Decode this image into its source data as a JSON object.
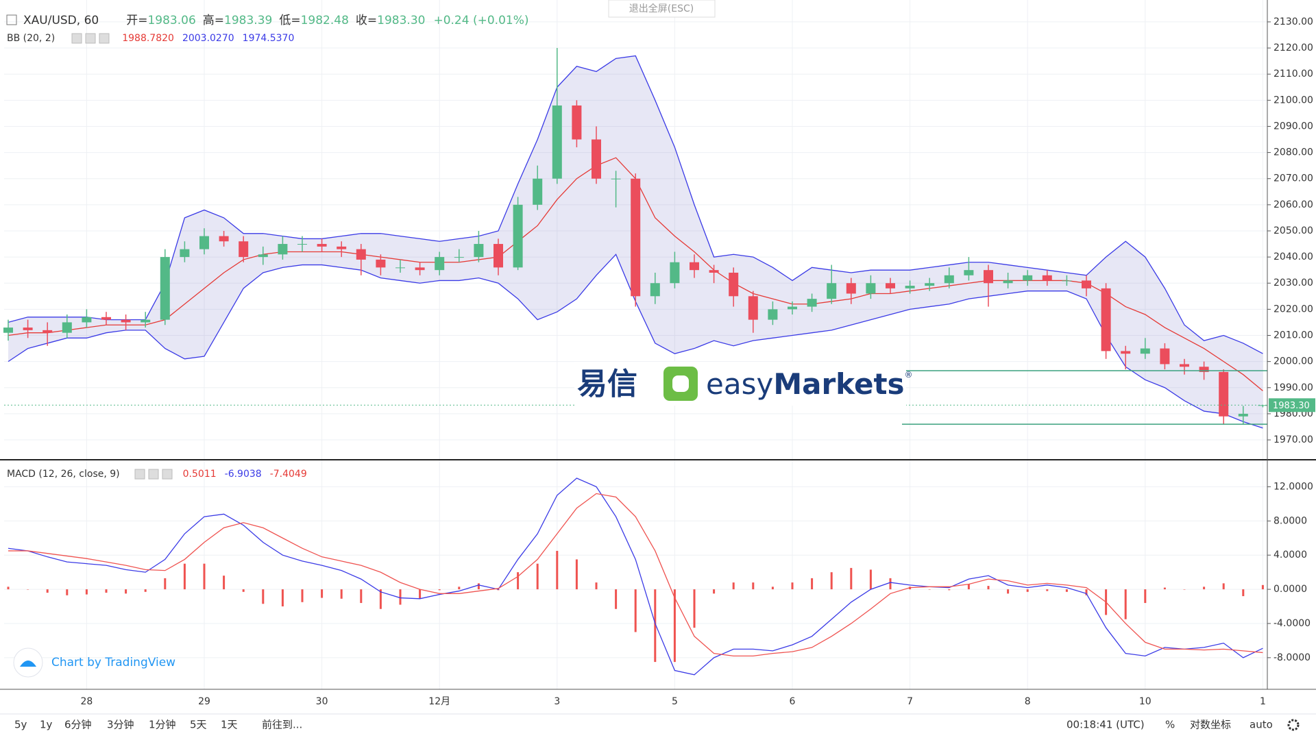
{
  "header": {
    "exit_fullscreen": "退出全屏(ESC)"
  },
  "chart_data": [
    {
      "type": "candlestick",
      "title": "XAU/USD, 60",
      "legend": [
        {
          "label": "开=",
          "value": "1983.06"
        },
        {
          "label": "高=",
          "value": "1983.39"
        },
        {
          "label": "低=",
          "value": "1982.48"
        },
        {
          "label": "收=",
          "value": "1983.30"
        }
      ],
      "change": "+0.24 (+0.01%)",
      "categories": [
        null,
        null,
        null,
        null,
        "28",
        null,
        null,
        null,
        null,
        null,
        "29",
        null,
        null,
        null,
        null,
        null,
        "30",
        null,
        null,
        null,
        null,
        null,
        "12月",
        null,
        null,
        null,
        null,
        null,
        "3",
        null,
        null,
        null,
        null,
        null,
        "5",
        null,
        null,
        null,
        null,
        null,
        "6",
        null,
        null,
        null,
        null,
        null,
        "7",
        null,
        null,
        null,
        null,
        null,
        "8",
        null,
        null,
        null,
        null,
        null,
        "10",
        null,
        null,
        null,
        null,
        null,
        "1"
      ],
      "open": [
        2011,
        2013,
        2012,
        2011,
        2015,
        2017,
        2016,
        2015,
        2016,
        2040,
        2043,
        2048,
        2046,
        2040,
        2041,
        2045,
        2045,
        2044,
        2043,
        2039,
        2036,
        2036,
        2035,
        2040,
        2040,
        2045,
        2036,
        2060,
        2070,
        2098,
        2085,
        2070,
        2070,
        2025,
        2030,
        2038,
        2035,
        2034,
        2025,
        2016,
        2020,
        2021,
        2024,
        2030,
        2026,
        2030,
        2028,
        2029,
        2030,
        2033,
        2035,
        2030,
        2031,
        2033,
        2031,
        2031,
        2028,
        2004,
        2003,
        2005,
        1999,
        1998,
        1996,
        1979,
        1983.06
      ],
      "high": [
        2016,
        2016,
        2015,
        2018,
        2020,
        2019,
        2018,
        2019,
        2043,
        2046,
        2051,
        2050,
        2048,
        2044,
        2048,
        2048,
        2047,
        2046,
        2045,
        2041,
        2039,
        2038,
        2042,
        2043,
        2050,
        2047,
        2063,
        2075,
        2120,
        2100,
        2090,
        2073,
        2072,
        2034,
        2042,
        2041,
        2037,
        2036,
        2027,
        2023,
        2023,
        2026,
        2037,
        2032,
        2033,
        2032,
        2031,
        2032,
        2036,
        2040,
        2037,
        2034,
        2035,
        2035,
        2033,
        2033,
        2030,
        2006,
        2009,
        2007,
        2001,
        2000,
        1997,
        1983,
        1983.39
      ],
      "low": [
        2008,
        2009,
        2006,
        2009,
        2013,
        2014,
        2012,
        2013,
        2014,
        2038,
        2041,
        2044,
        2038,
        2037,
        2039,
        2042,
        2042,
        2040,
        2033,
        2033,
        2034,
        2033,
        2033,
        2038,
        2038,
        2033,
        2035,
        2058,
        2068,
        2082,
        2068,
        2059,
        2021,
        2022,
        2028,
        2032,
        2030,
        2021,
        2011,
        2014,
        2018,
        2019,
        2022,
        2022,
        2024,
        2026,
        2026,
        2027,
        2028,
        2031,
        2021,
        2028,
        2029,
        2029,
        2029,
        2025,
        2001,
        1997,
        2001,
        1997,
        1995,
        1993,
        1976,
        1976,
        1982.48
      ],
      "close": [
        2013,
        2012,
        2011,
        2015,
        2017,
        2016,
        2015,
        2016,
        2040,
        2043,
        2048,
        2046,
        2040,
        2041,
        2045,
        2045,
        2044,
        2043,
        2039,
        2036,
        2036,
        2035,
        2040,
        2040,
        2045,
        2036,
        2060,
        2070,
        2098,
        2085,
        2070,
        2070,
        2025,
        2030,
        2038,
        2035,
        2034,
        2025,
        2016,
        2020,
        2021,
        2024,
        2030,
        2026,
        2030,
        2028,
        2029,
        2030,
        2033,
        2035,
        2030,
        2031,
        2033,
        2031,
        2031,
        2028,
        2004,
        2003,
        2005,
        1999,
        1998,
        1996,
        1979,
        1980,
        1983.3
      ],
      "up_color": "#53b987",
      "down_color": "#eb4d5c",
      "ylim": [
        1962.4,
        2136.8
      ],
      "yticks": [
        {
          "value": 1970,
          "label": "1970.00"
        },
        {
          "value": 1980,
          "label": "1980.00"
        },
        {
          "value": 1990,
          "label": "1990.00"
        },
        {
          "value": 2000,
          "label": "2000.00"
        },
        {
          "value": 2010,
          "label": "2010.00"
        },
        {
          "value": 2020,
          "label": "2020.00"
        },
        {
          "value": 2030,
          "label": "2030.00"
        },
        {
          "value": 2040,
          "label": "2040.00"
        },
        {
          "value": 2050,
          "label": "2050.00"
        },
        {
          "value": 2060,
          "label": "2060.00"
        },
        {
          "value": 2070,
          "label": "2070.00"
        },
        {
          "value": 2080,
          "label": "2080.00"
        },
        {
          "value": 2090,
          "label": "2090.00"
        },
        {
          "value": 2100,
          "label": "2100.00"
        },
        {
          "value": 2110,
          "label": "2110.00"
        },
        {
          "value": 2120,
          "label": "2120.00"
        },
        {
          "value": 2130,
          "label": "2130.00"
        }
      ],
      "grid": true,
      "bands": {
        "name": "BB (20, 2)",
        "fill": "rgba(120,120,200,0.18)",
        "basis": {
          "color": "#e53935",
          "values": [
            2010,
            2011,
            2011,
            2012,
            2013,
            2014,
            2014,
            2014,
            2016,
            2022,
            2028,
            2034,
            2039,
            2041,
            2042,
            2042,
            2042,
            2042,
            2041,
            2040,
            2039,
            2038,
            2038,
            2038,
            2039,
            2040,
            2046,
            2052,
            2062,
            2070,
            2075,
            2078,
            2070,
            2055,
            2048,
            2042,
            2035,
            2030,
            2026,
            2024,
            2022,
            2022,
            2023,
            2024,
            2026,
            2026,
            2027,
            2028,
            2029,
            2030,
            2031,
            2031,
            2031,
            2031,
            2031,
            2030,
            2026,
            2021,
            2018,
            2013,
            2009,
            2005,
            2000,
            1995,
            1988.782
          ]
        },
        "upper": {
          "color": "#3a3ae6",
          "values": [
            2015,
            2017,
            2017,
            2017,
            2017,
            2016,
            2016,
            2016,
            2030,
            2055,
            2058,
            2055,
            2049,
            2049,
            2048,
            2047,
            2047,
            2048,
            2049,
            2049,
            2048,
            2047,
            2046,
            2047,
            2048,
            2050,
            2068,
            2085,
            2105,
            2113,
            2111,
            2116,
            2117,
            2100,
            2082,
            2060,
            2040,
            2041,
            2040,
            2036,
            2031,
            2036,
            2035,
            2034,
            2035,
            2035,
            2035,
            2036,
            2037,
            2038,
            2038,
            2037,
            2036,
            2035,
            2034,
            2033,
            2040,
            2046,
            2040,
            2028,
            2014,
            2008,
            2010,
            2007,
            2003.027
          ]
        },
        "lower": {
          "color": "#3a3ae6",
          "values": [
            2000,
            2005,
            2007,
            2009,
            2009,
            2011,
            2012,
            2012,
            2005,
            2001,
            2002,
            2015,
            2028,
            2034,
            2036,
            2037,
            2037,
            2036,
            2035,
            2032,
            2031,
            2030,
            2031,
            2031,
            2032,
            2030,
            2024,
            2016,
            2019,
            2024,
            2033,
            2041,
            2023,
            2007,
            2003,
            2005,
            2008,
            2006,
            2008,
            2009,
            2010,
            2011,
            2012,
            2014,
            2016,
            2018,
            2020,
            2021,
            2022,
            2024,
            2025,
            2026,
            2027,
            2027,
            2027,
            2024,
            2010,
            1998,
            1993,
            1990,
            1985,
            1981,
            1980,
            1977,
            1974.537
          ]
        },
        "legend_values": [
          {
            "label": "1988.7820",
            "color": "#e53935"
          },
          {
            "label": "2003.0270",
            "color": "#3a3ae6"
          },
          {
            "label": "1974.5370",
            "color": "#3a3ae6"
          }
        ]
      },
      "last_price": {
        "value": 1983.3,
        "label": "1983.30",
        "color": "#53b987"
      },
      "hlines": [
        {
          "value": 1996.5,
          "color": "#3aa17e"
        },
        {
          "value": 1976,
          "color": "#3aa17e"
        }
      ]
    },
    {
      "type": "macd",
      "title": "MACD (12, 26, close, 9)",
      "legend_values": [
        {
          "label": "0.5011",
          "color": "#e53935"
        },
        {
          "label": "-6.9038",
          "color": "#3a3ae6"
        },
        {
          "label": "-7.4049",
          "color": "#e53935"
        }
      ],
      "ylim": [
        -11.7,
        15
      ],
      "yticks": [
        {
          "value": -8,
          "label": "-8.0000"
        },
        {
          "value": -4,
          "label": "-4.0000"
        },
        {
          "value": 0,
          "label": "0.0000"
        },
        {
          "value": 4,
          "label": "4.0000"
        },
        {
          "value": 8,
          "label": "8.0000"
        },
        {
          "value": 12,
          "label": "12.0000"
        }
      ],
      "grid": true,
      "series": [
        {
          "kind": "histogram",
          "color": "#ef5350",
          "values": [
            0.3,
            0.0,
            -0.4,
            -0.7,
            -0.6,
            -0.4,
            -0.5,
            -0.3,
            1.3,
            3.0,
            3.0,
            1.6,
            -0.3,
            -1.7,
            -2.0,
            -1.5,
            -1.0,
            -1.1,
            -1.6,
            -2.3,
            -1.8,
            -1.1,
            -0.1,
            0.3,
            0.7,
            -0.1,
            2.0,
            3.0,
            4.5,
            3.5,
            0.8,
            -2.3,
            -5.0,
            -8.5,
            -8.5,
            -4.5,
            -0.5,
            0.8,
            0.8,
            0.3,
            0.8,
            1.3,
            2.0,
            2.5,
            2.3,
            1.3,
            0.3,
            0.0,
            -0.1,
            0.6,
            0.4,
            -0.5,
            -0.3,
            -0.2,
            -0.3,
            -0.7,
            -3.0,
            -3.5,
            -1.6,
            0.2,
            0.0,
            0.3,
            0.7,
            -0.8,
            0.5011
          ]
        },
        {
          "kind": "line",
          "color": "#3a3ae6",
          "values": [
            4.8,
            4.5,
            3.8,
            3.2,
            3.0,
            2.8,
            2.3,
            2.0,
            3.5,
            6.5,
            8.5,
            8.8,
            7.5,
            5.5,
            4.0,
            3.3,
            2.8,
            2.2,
            1.2,
            -0.3,
            -1.0,
            -1.1,
            -0.6,
            -0.2,
            0.5,
            0.0,
            3.5,
            6.5,
            11.0,
            13.0,
            12.0,
            8.5,
            3.5,
            -4.0,
            -9.5,
            -10.0,
            -8.0,
            -7.0,
            -7.0,
            -7.2,
            -6.5,
            -5.5,
            -3.5,
            -1.5,
            0.0,
            0.8,
            0.5,
            0.3,
            0.2,
            1.2,
            1.6,
            0.5,
            0.2,
            0.5,
            0.2,
            -0.5,
            -4.5,
            -7.5,
            -7.8,
            -6.8,
            -7.0,
            -6.8,
            -6.3,
            -8.0,
            -6.9038
          ]
        },
        {
          "kind": "line",
          "color": "#ef5350",
          "values": [
            4.5,
            4.5,
            4.2,
            3.9,
            3.6,
            3.2,
            2.8,
            2.3,
            2.2,
            3.5,
            5.5,
            7.2,
            7.8,
            7.2,
            6.0,
            4.8,
            3.8,
            3.3,
            2.8,
            2.0,
            0.8,
            0.0,
            -0.5,
            -0.5,
            -0.2,
            0.1,
            1.5,
            3.5,
            6.5,
            9.5,
            11.2,
            10.8,
            8.5,
            4.5,
            -1.0,
            -5.5,
            -7.5,
            -7.8,
            -7.8,
            -7.5,
            -7.3,
            -6.8,
            -5.5,
            -4.0,
            -2.3,
            -0.5,
            0.2,
            0.3,
            0.3,
            0.6,
            1.2,
            1.0,
            0.5,
            0.7,
            0.5,
            0.2,
            -1.5,
            -4.0,
            -6.2,
            -7.0,
            -7.0,
            -7.1,
            -7.0,
            -7.2,
            -7.4049
          ]
        }
      ]
    }
  ],
  "watermark": {
    "cn": "易信",
    "brand": [
      "easy",
      "Markets"
    ],
    "reg": "®"
  },
  "credit": "Chart by TradingView",
  "toolbar": {
    "left": [
      "5y",
      "1y",
      "6分钟",
      "3分钟",
      "1分钟",
      "5天",
      "1天",
      "前往到..."
    ],
    "time": "00:18:41 (UTC)",
    "right": [
      "%",
      "对数坐标",
      "auto"
    ]
  }
}
